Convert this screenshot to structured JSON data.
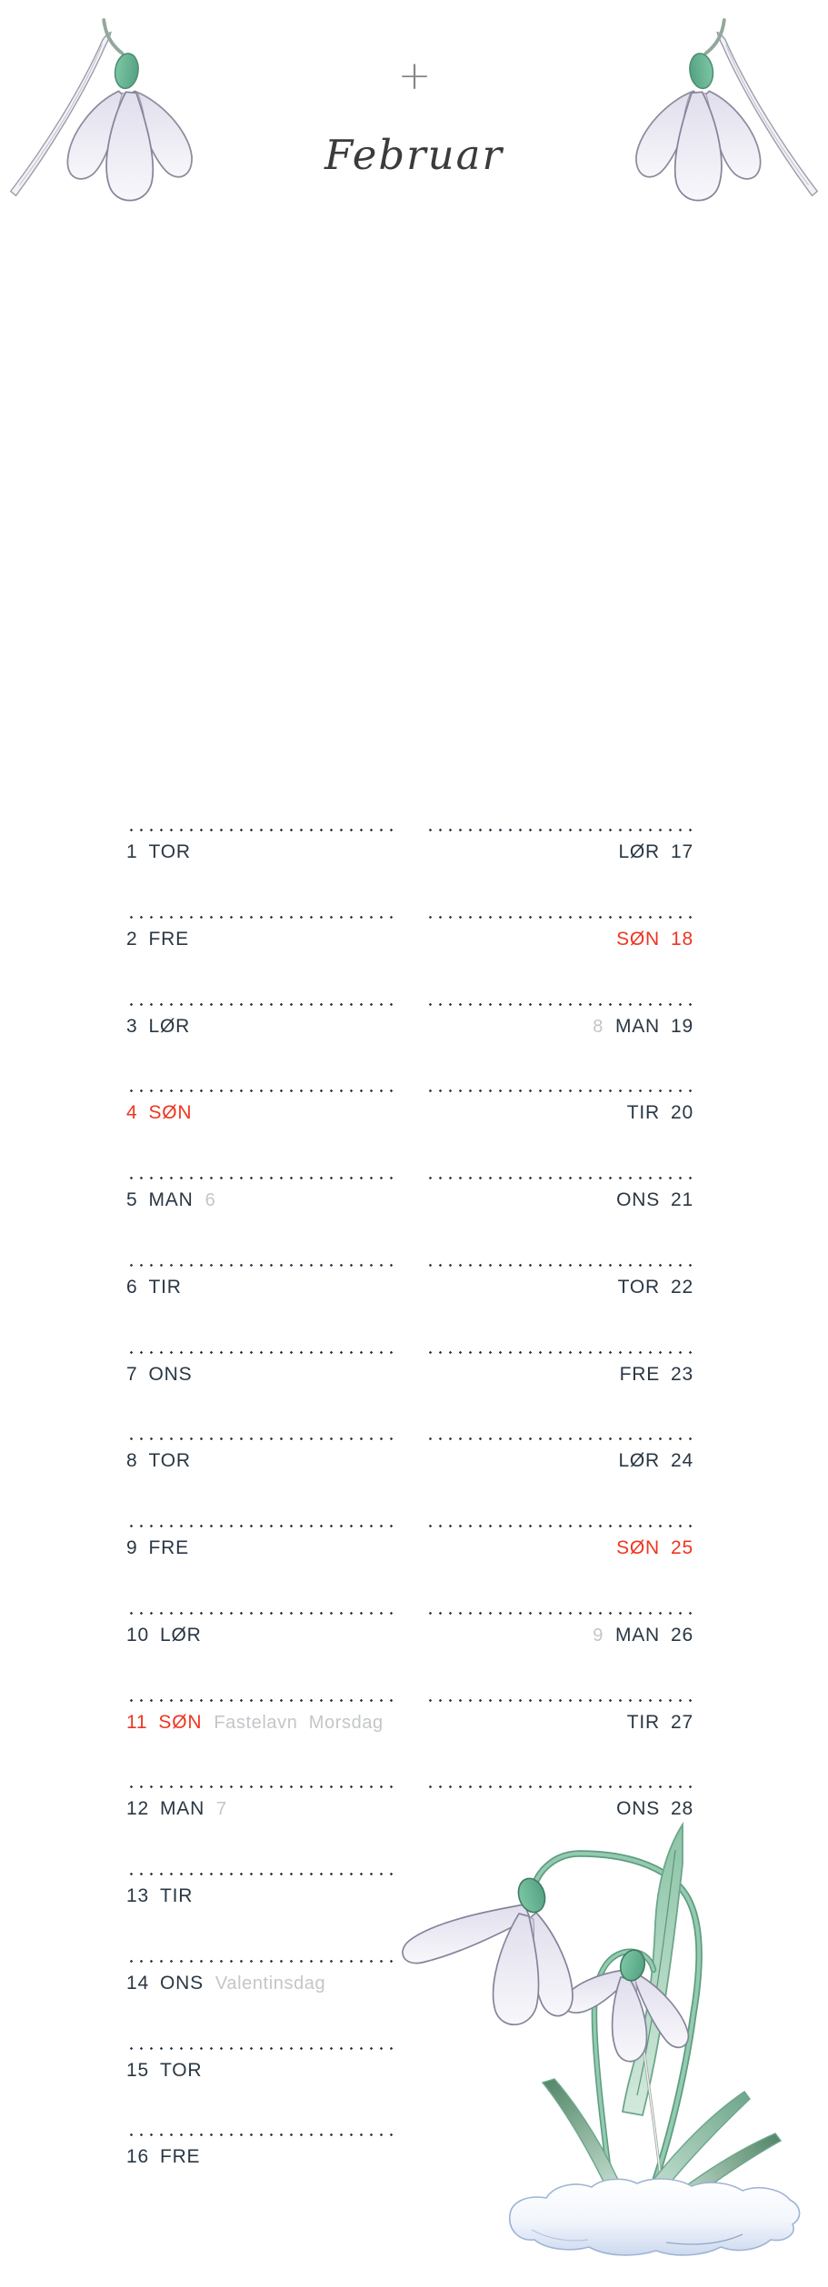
{
  "header": {
    "plus": "+",
    "month_title": "Februar"
  },
  "illustrations": {
    "top_left": "snowdrop-flower",
    "top_right": "snowdrop-flower-mirrored",
    "bottom_right": "two-snowdrops-in-snow"
  },
  "colors": {
    "page_bg": "#ffffff",
    "text_dark": "#293744",
    "sunday_red": "#ee3620",
    "muted_gray": "#c3c6c9",
    "dot_color": "#2f3c4a",
    "teal": "#6fbf9d",
    "petal": "#ececf4",
    "leaf_green": "#9ccbb0",
    "snow_blue": "#ccd9ef"
  },
  "calendar": {
    "left": [
      {
        "date": "1",
        "day": "TOR",
        "week": "",
        "note": "",
        "sunday": false
      },
      {
        "date": "2",
        "day": "FRE",
        "week": "",
        "note": "",
        "sunday": false
      },
      {
        "date": "3",
        "day": "LØR",
        "week": "",
        "note": "",
        "sunday": false
      },
      {
        "date": "4",
        "day": "SØN",
        "week": "",
        "note": "",
        "sunday": true
      },
      {
        "date": "5",
        "day": "MAN",
        "week": "6",
        "note": "",
        "sunday": false
      },
      {
        "date": "6",
        "day": "TIR",
        "week": "",
        "note": "",
        "sunday": false
      },
      {
        "date": "7",
        "day": "ONS",
        "week": "",
        "note": "",
        "sunday": false
      },
      {
        "date": "8",
        "day": "TOR",
        "week": "",
        "note": "",
        "sunday": false
      },
      {
        "date": "9",
        "day": "FRE",
        "week": "",
        "note": "",
        "sunday": false
      },
      {
        "date": "10",
        "day": "LØR",
        "week": "",
        "note": "",
        "sunday": false
      },
      {
        "date": "11",
        "day": "SØN",
        "week": "",
        "note": "Fastelavn  Morsdag",
        "sunday": true
      },
      {
        "date": "12",
        "day": "MAN",
        "week": "7",
        "note": "",
        "sunday": false
      },
      {
        "date": "13",
        "day": "TIR",
        "week": "",
        "note": "",
        "sunday": false
      },
      {
        "date": "14",
        "day": "ONS",
        "week": "",
        "note": "Valentinsdag",
        "sunday": false
      },
      {
        "date": "15",
        "day": "TOR",
        "week": "",
        "note": "",
        "sunday": false
      },
      {
        "date": "16",
        "day": "FRE",
        "week": "",
        "note": "",
        "sunday": false
      }
    ],
    "right": [
      {
        "date": "17",
        "day": "LØR",
        "week": "",
        "note": "",
        "sunday": false
      },
      {
        "date": "18",
        "day": "SØN",
        "week": "",
        "note": "",
        "sunday": true
      },
      {
        "date": "19",
        "day": "MAN",
        "week": "8",
        "note": "",
        "sunday": false
      },
      {
        "date": "20",
        "day": "TIR",
        "week": "",
        "note": "",
        "sunday": false
      },
      {
        "date": "21",
        "day": "ONS",
        "week": "",
        "note": "",
        "sunday": false
      },
      {
        "date": "22",
        "day": "TOR",
        "week": "",
        "note": "",
        "sunday": false
      },
      {
        "date": "23",
        "day": "FRE",
        "week": "",
        "note": "",
        "sunday": false
      },
      {
        "date": "24",
        "day": "LØR",
        "week": "",
        "note": "",
        "sunday": false
      },
      {
        "date": "25",
        "day": "SØN",
        "week": "",
        "note": "",
        "sunday": true
      },
      {
        "date": "26",
        "day": "MAN",
        "week": "9",
        "note": "",
        "sunday": false
      },
      {
        "date": "27",
        "day": "TIR",
        "week": "",
        "note": "",
        "sunday": false
      },
      {
        "date": "28",
        "day": "ONS",
        "week": "",
        "note": "",
        "sunday": false
      }
    ]
  }
}
